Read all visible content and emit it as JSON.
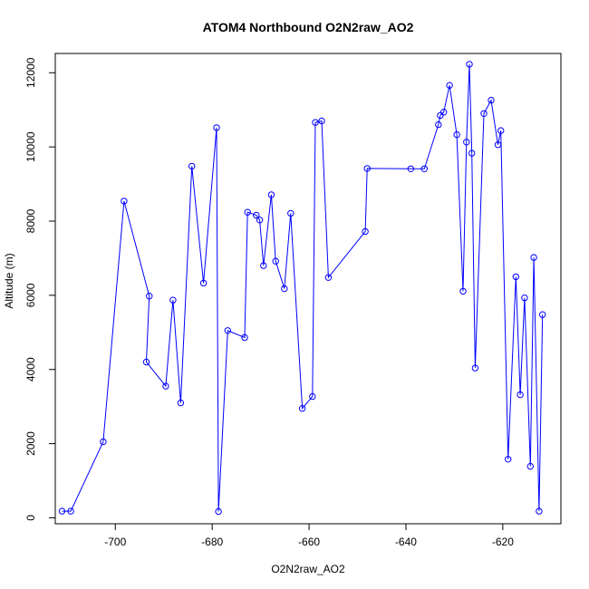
{
  "chart_data": {
    "type": "scatter",
    "title": "ATOM4 Northbound O2N2raw_AO2",
    "xlabel": "O2N2raw_AO2",
    "ylabel": "Altitude (m)",
    "xlim": [
      -712.4,
      -608.0
    ],
    "ylim": [
      -160,
      12520
    ],
    "xticks": [
      -700,
      -680,
      -660,
      -640,
      -620
    ],
    "yticks": [
      0,
      2000,
      4000,
      6000,
      8000,
      10000,
      12000
    ],
    "grid": false,
    "legend": "none",
    "color": "#0000ff",
    "series": [
      {
        "x": [
          -711.0,
          -709.2,
          -702.5,
          -698.2,
          -693.0,
          -693.6,
          -689.6,
          -688.1,
          -686.5,
          -684.2,
          -681.8,
          -679.1,
          -678.7,
          -676.8,
          -673.3,
          -672.7,
          -670.9,
          -670.2,
          -669.4,
          -667.8,
          -666.9,
          -665.1,
          -663.8,
          -661.4,
          -659.3,
          -658.7,
          -657.4,
          -656.0,
          -648.4,
          -648.0,
          -639.0,
          -636.2,
          -633.3,
          -632.9,
          -632.2,
          -631.0,
          -629.5,
          -628.2,
          -627.5,
          -626.9,
          -626.4,
          -625.7,
          -623.9,
          -622.4,
          -621.0,
          -620.4,
          -618.9,
          -617.3,
          -616.4,
          -615.5,
          -614.3,
          -613.6,
          -612.5,
          -611.8
        ],
        "y": [
          180,
          180,
          2050,
          8540,
          5980,
          4200,
          3550,
          5870,
          3100,
          9480,
          6330,
          10520,
          170,
          5050,
          4860,
          8240,
          8160,
          8030,
          6800,
          8710,
          6920,
          6180,
          8210,
          2950,
          3270,
          10660,
          10700,
          6480,
          7720,
          9420,
          9410,
          9410,
          10600,
          10850,
          10940,
          11660,
          10330,
          6110,
          10130,
          12230,
          9830,
          4040,
          10900,
          11260,
          10060,
          10440,
          1580,
          6500,
          3320,
          5930,
          1390,
          7020,
          180,
          5480
        ]
      }
    ]
  }
}
